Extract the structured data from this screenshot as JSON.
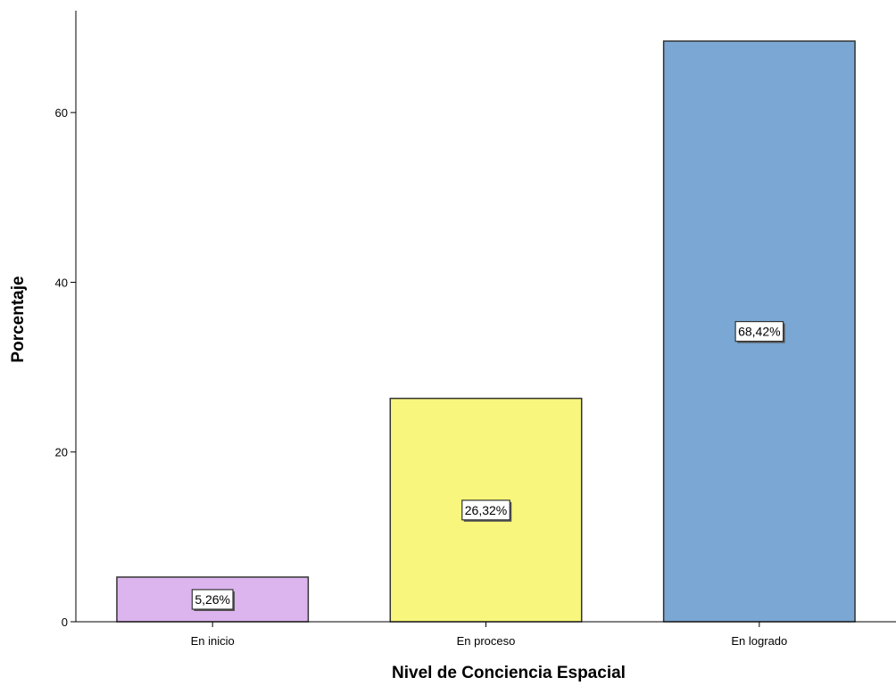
{
  "chart_data": {
    "type": "bar",
    "title": "",
    "xlabel": "Nivel de Conciencia Espacial",
    "ylabel": "Porcentaje",
    "categories": [
      "En inicio",
      "En proceso",
      "En logrado"
    ],
    "values": [
      5.26,
      26.32,
      68.42
    ],
    "data_labels": [
      "5,26%",
      "26,32%",
      "68,42%"
    ],
    "colors": [
      "#dcb5ee",
      "#f8f67c",
      "#7aa7d3"
    ],
    "ylim": [
      0,
      72
    ],
    "yticks": [
      0,
      20,
      40,
      60
    ],
    "ytick_labels": [
      "0",
      "20",
      "40",
      "60"
    ],
    "grid": false,
    "legend": "none"
  }
}
